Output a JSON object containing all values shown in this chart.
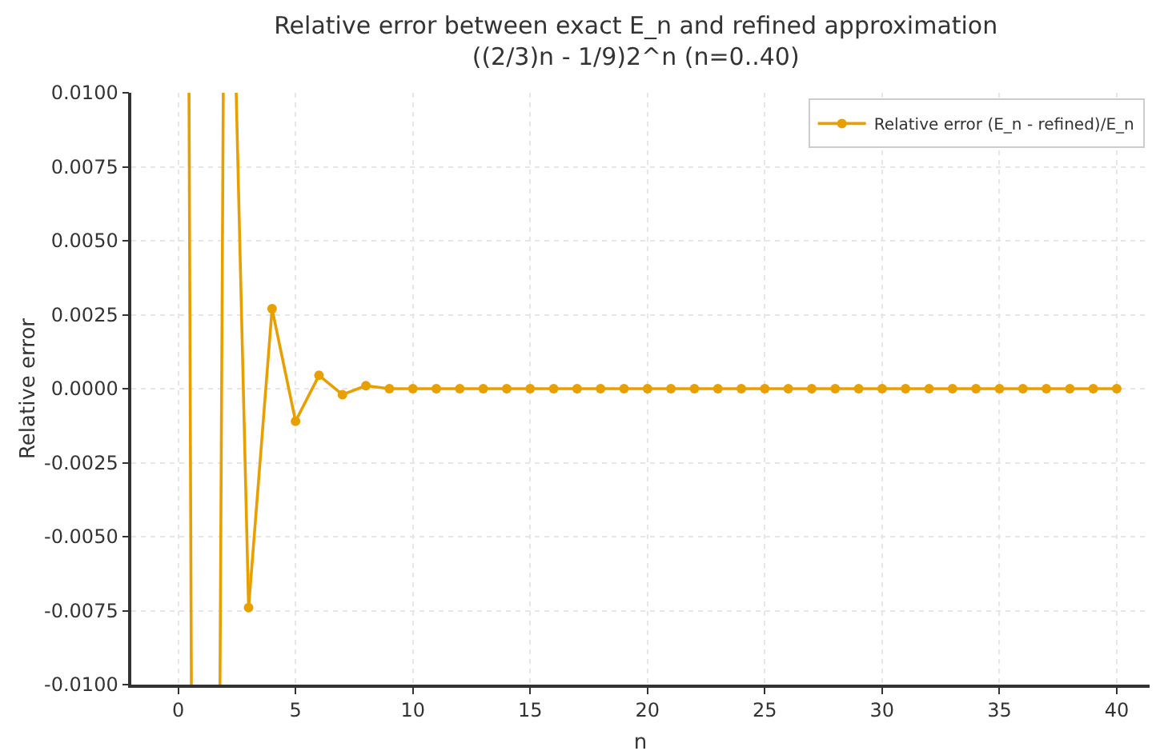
{
  "chart_data": {
    "type": "line",
    "title": "Relative error between exact E_n and refined approximation\n((2/3)n - 1/9)2^n (n=0..40)",
    "xlabel": "n",
    "ylabel": "Relative error",
    "series": [
      {
        "type": "line",
        "color": "#e8a000",
        "marker": "none",
        "x": [
          0.46,
          0.56,
          1.2,
          1.78,
          1.92,
          2.2,
          2.47,
          3
        ],
        "values": [
          0.01,
          -0.01,
          null,
          -0.01,
          0.01,
          null,
          0.01,
          -0.0074
        ]
      },
      {
        "name": "Relative error (E_n - refined)/E_n",
        "color": "#e8a000",
        "x": [
          3,
          4,
          5,
          6,
          7,
          8,
          9,
          10,
          11,
          12,
          13,
          14,
          15,
          16,
          17,
          18,
          19,
          20,
          21,
          22,
          23,
          24,
          25,
          26,
          27,
          28,
          29,
          30,
          31,
          32,
          33,
          34,
          35,
          36,
          37,
          38,
          39,
          40
        ],
        "values": [
          -0.0074,
          0.0027,
          -0.0011,
          0.00045,
          -0.0002,
          0.0001,
          0,
          0,
          0,
          0,
          0,
          0,
          0,
          0,
          0,
          0,
          0,
          0,
          0,
          0,
          0,
          0,
          0,
          0,
          0,
          0,
          0,
          0,
          0,
          0,
          0,
          0,
          0,
          0,
          0,
          0,
          0,
          0
        ]
      }
    ],
    "xlim": [
      -2,
      41.4
    ],
    "xticks": [
      0,
      5,
      10,
      15,
      20,
      25,
      30,
      35,
      40
    ],
    "ylim": [
      -0.01,
      0.01
    ],
    "yticks": [
      {
        "value": -0.01,
        "label": "-0.0100"
      },
      {
        "value": -0.0075,
        "label": "-0.0075"
      },
      {
        "value": -0.005,
        "label": "-0.0050"
      },
      {
        "value": -0.0025,
        "label": "-0.0025"
      },
      {
        "value": 0,
        "label": "0.0000"
      },
      {
        "value": 0.0025,
        "label": "0.0025"
      },
      {
        "value": 0.005,
        "label": "0.0050"
      },
      {
        "value": 0.0075,
        "label": "0.0075"
      },
      {
        "value": 0.01,
        "label": "0.0100"
      }
    ],
    "grid": true,
    "legend": "top right",
    "marker": "circle",
    "line_style": "solid"
  }
}
